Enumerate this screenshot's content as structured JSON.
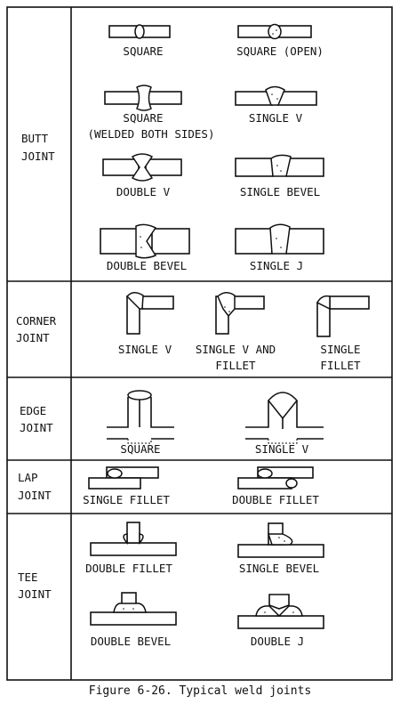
{
  "sections": {
    "butt": {
      "label_lines": [
        "BUTT",
        "JOINT"
      ],
      "items": {
        "square": [
          "SQUARE"
        ],
        "square_open": [
          "SQUARE (OPEN)"
        ],
        "square_both": [
          "SQUARE",
          "(WELDED BOTH SIDES)"
        ],
        "single_v": [
          "SINGLE V"
        ],
        "double_v": [
          "DOUBLE V"
        ],
        "single_bevel": [
          "SINGLE BEVEL"
        ],
        "double_bevel": [
          "DOUBLE BEVEL"
        ],
        "single_j": [
          "SINGLE J"
        ]
      }
    },
    "corner": {
      "label_lines": [
        "CORNER",
        "JOINT"
      ],
      "items": {
        "single_v": [
          "SINGLE V"
        ],
        "single_v_fillet": [
          "SINGLE V AND",
          "FILLET"
        ],
        "single_fillet": [
          "SINGLE",
          "FILLET"
        ]
      }
    },
    "edge": {
      "label_lines": [
        "EDGE",
        "JOINT"
      ],
      "items": {
        "square": [
          "SQUARE"
        ],
        "single_v": [
          "SINGLE V"
        ]
      }
    },
    "lap": {
      "label_lines": [
        "LAP",
        "JOINT"
      ],
      "items": {
        "single_fillet": [
          "SINGLE FILLET"
        ],
        "double_fillet": [
          "DOUBLE FILLET"
        ]
      }
    },
    "tee": {
      "label_lines": [
        "TEE",
        "JOINT"
      ],
      "items": {
        "double_fillet": [
          "DOUBLE FILLET"
        ],
        "single_bevel": [
          "SINGLE BEVEL"
        ],
        "double_bevel": [
          "DOUBLE BEVEL"
        ],
        "double_j": [
          "DOUBLE J"
        ]
      }
    }
  },
  "caption": "Figure 6-26.  Typical weld joints"
}
